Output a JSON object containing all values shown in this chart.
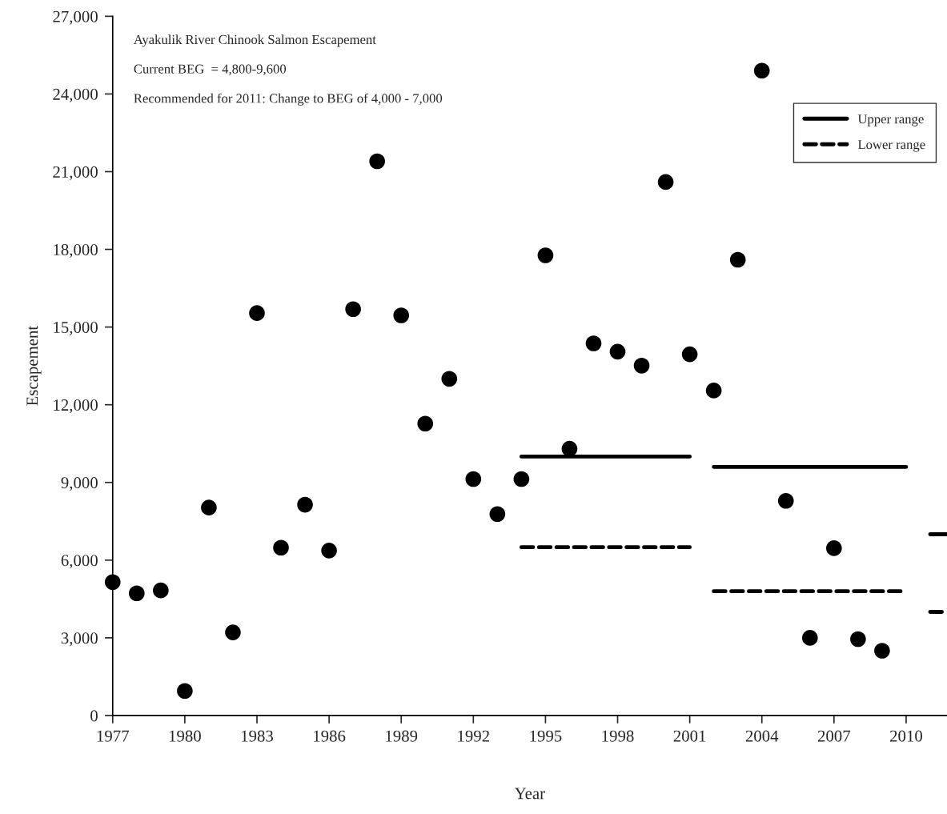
{
  "chart_data": {
    "type": "scatter",
    "xlabel": "Year",
    "ylabel": "Escapement",
    "annotations": [
      "Ayakulik River Chinook Salmon Escapement",
      "Current BEG  = 4,800-9,600",
      "Recommended for 2011: Change to BEG of 4,000 - 7,000"
    ],
    "xlim": [
      1977,
      2011.7
    ],
    "xticks": [
      1977,
      1980,
      1983,
      1986,
      1989,
      1992,
      1995,
      1998,
      2001,
      2004,
      2007,
      2010
    ],
    "ylim": [
      0,
      27000
    ],
    "yticks": [
      {
        "value": 0,
        "label": "0"
      },
      {
        "value": 3000,
        "label": "3,000"
      },
      {
        "value": 6000,
        "label": "6,000"
      },
      {
        "value": 9000,
        "label": "9,000"
      },
      {
        "value": 12000,
        "label": "12,000"
      },
      {
        "value": 15000,
        "label": "15,000"
      },
      {
        "value": 18000,
        "label": "18,000"
      },
      {
        "value": 21000,
        "label": "21,000"
      },
      {
        "value": 24000,
        "label": "24,000"
      },
      {
        "value": 27000,
        "label": "27,000"
      }
    ],
    "grid": false,
    "legend": "top right",
    "series": [
      {
        "color": "#000000",
        "marker": "circle",
        "x": [
          1977,
          1978,
          1979,
          1980,
          1981,
          1982,
          1983,
          1984,
          1985,
          1986,
          1987,
          1988,
          1989,
          1990,
          1991,
          1992,
          1993,
          1994,
          1995,
          1996,
          1997,
          1998,
          1999,
          2000,
          2001,
          2002,
          2003,
          2004,
          2005,
          2006,
          2007,
          2008,
          2009
        ],
        "values": [
          5150,
          4720,
          4830,
          950,
          8030,
          3210,
          15540,
          6480,
          8140,
          6370,
          15690,
          21400,
          15450,
          11270,
          13000,
          9130,
          7780,
          9130,
          17770,
          10300,
          14370,
          14050,
          13510,
          20600,
          13950,
          12550,
          17600,
          24900,
          8290,
          3000,
          6460,
          2950,
          2500
        ]
      },
      {
        "type": "line",
        "name": "Upper range",
        "color": "#000000",
        "line_style": "solid",
        "marker": "none",
        "x": [
          1994,
          2001,
          2001.5,
          2002,
          2010,
          2010.5,
          2011,
          2011.7
        ],
        "values": [
          10000,
          10000,
          null,
          9600,
          9600,
          null,
          7000,
          7000
        ]
      },
      {
        "type": "line",
        "name": "Lower range",
        "color": "#000000",
        "line_style": "dashed",
        "marker": "none",
        "x": [
          1994,
          2001,
          2001.5,
          2002,
          2010,
          2010.5,
          2011,
          2011.7
        ],
        "values": [
          6500,
          6500,
          null,
          4800,
          4800,
          null,
          4000,
          4000
        ]
      }
    ]
  }
}
